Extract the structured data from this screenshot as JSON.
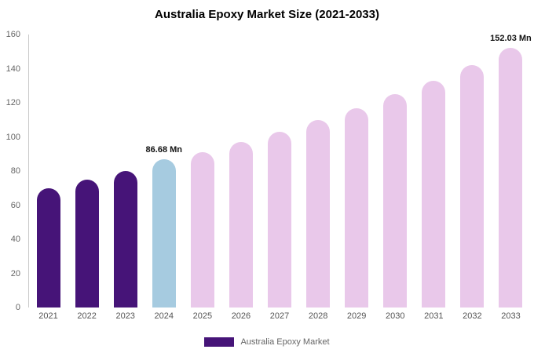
{
  "chart_data": {
    "type": "bar",
    "title": "Australia Epoxy Market Size (2021-2033)",
    "categories": [
      "2021",
      "2022",
      "2023",
      "2024",
      "2025",
      "2026",
      "2027",
      "2028",
      "2029",
      "2030",
      "2031",
      "2032",
      "2033"
    ],
    "values": [
      70,
      75,
      80,
      86.68,
      91,
      97,
      103,
      110,
      117,
      125,
      133,
      142,
      152.03
    ],
    "colors": [
      "#461478",
      "#461478",
      "#461478",
      "#a6cbe0",
      "#e9c8ea",
      "#e9c8ea",
      "#e9c8ea",
      "#e9c8ea",
      "#e9c8ea",
      "#e9c8ea",
      "#e9c8ea",
      "#e9c8ea",
      "#e9c8ea"
    ],
    "annotations": [
      {
        "category_index": 3,
        "text": "86.68 Mn"
      },
      {
        "category_index": 12,
        "text": "152.03 Mn"
      }
    ],
    "xlabel": "",
    "ylabel": "",
    "ylim": [
      0,
      160
    ],
    "yticks": [
      0,
      20,
      40,
      60,
      80,
      100,
      120,
      140,
      160
    ],
    "grid": false,
    "legend_position": "bottom",
    "legend": [
      {
        "label": "Australia Epoxy Market",
        "color": "#461478"
      }
    ]
  }
}
